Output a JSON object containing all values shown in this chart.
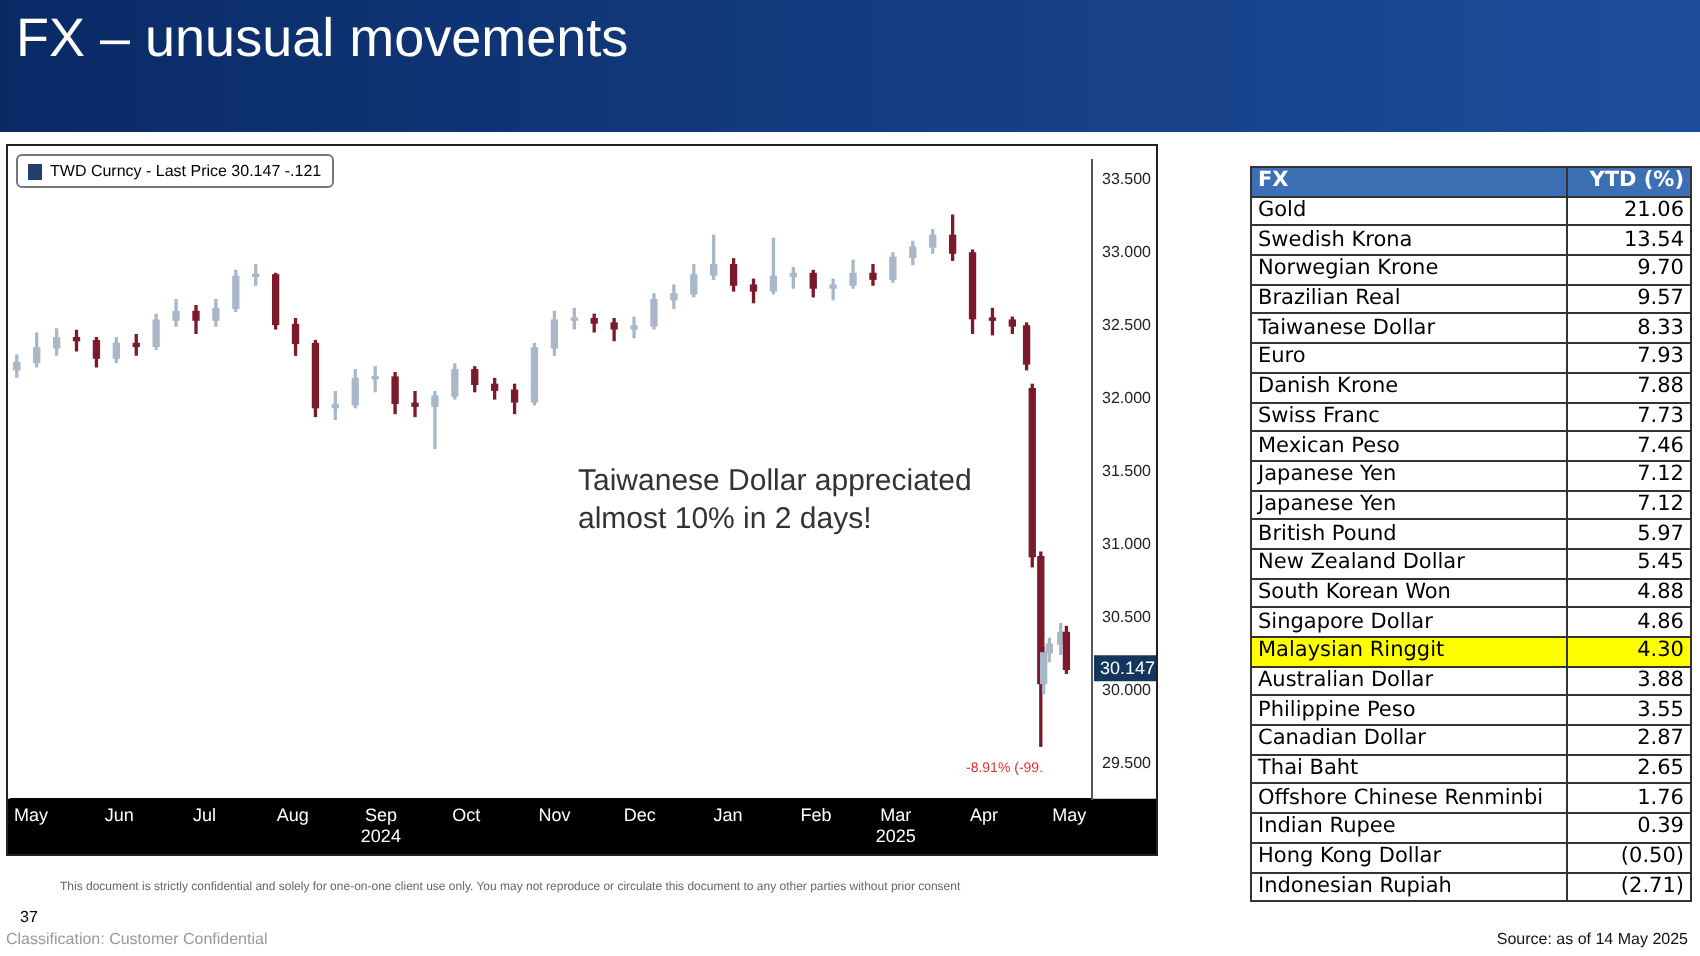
{
  "chart_data": [
    {
      "type": "candlestick",
      "title": "FX – unusual movements",
      "legend": "top left",
      "xlim": [
        "2024-05-08",
        "2025-05-23"
      ],
      "xticks": [
        {
          "value": "2024-05-15",
          "label": "May"
        },
        {
          "value": "2024-06-15",
          "label": "Jun"
        },
        {
          "value": "2024-07-15",
          "label": "Jul"
        },
        {
          "value": "2024-08-15",
          "label": "Aug"
        },
        {
          "value": "2024-09-15",
          "label": "Sep\n2024"
        },
        {
          "value": "2024-10-15",
          "label": "Oct"
        },
        {
          "value": "2024-11-15",
          "label": "Nov"
        },
        {
          "value": "2024-12-15",
          "label": "Dec"
        },
        {
          "value": "2025-01-15",
          "label": "Jan"
        },
        {
          "value": "2025-02-15",
          "label": "Feb"
        },
        {
          "value": "2025-03-15",
          "label": "Mar\n2025"
        },
        {
          "value": "2025-04-15",
          "label": "Apr"
        },
        {
          "value": "2025-05-15",
          "label": "May"
        }
      ],
      "ylim": [
        29.26,
        33.64
      ],
      "yticks": [
        {
          "value": 29.5,
          "label": "29.500"
        },
        {
          "value": 30,
          "label": "30.000"
        },
        {
          "value": 30.5,
          "label": "30.500"
        },
        {
          "value": 31,
          "label": "31.000"
        },
        {
          "value": 31.5,
          "label": "31.500"
        },
        {
          "value": 32,
          "label": "32.000"
        },
        {
          "value": 32.5,
          "label": "32.500"
        },
        {
          "value": 33,
          "label": "33.000"
        },
        {
          "value": 33.5,
          "label": "33.500"
        }
      ],
      "series": [
        {
          "name": "TWD Curncy - Last Price 30.147  -.121",
          "color": "#1f3f6e",
          "x": [
            "2024-05-10",
            "2024-05-17",
            "2024-05-24",
            "2024-05-31",
            "2024-06-07",
            "2024-06-14",
            "2024-06-21",
            "2024-06-28",
            "2024-07-05",
            "2024-07-12",
            "2024-07-19",
            "2024-07-26",
            "2024-08-02",
            "2024-08-09",
            "2024-08-16",
            "2024-08-23",
            "2024-08-30",
            "2024-09-06",
            "2024-09-13",
            "2024-09-20",
            "2024-09-27",
            "2024-10-04",
            "2024-10-11",
            "2024-10-18",
            "2024-10-25",
            "2024-11-01",
            "2024-11-08",
            "2024-11-15",
            "2024-11-22",
            "2024-11-29",
            "2024-12-06",
            "2024-12-13",
            "2024-12-20",
            "2024-12-27",
            "2025-01-03",
            "2025-01-10",
            "2025-01-17",
            "2025-01-24",
            "2025-01-31",
            "2025-02-07",
            "2025-02-14",
            "2025-02-21",
            "2025-02-28",
            "2025-03-07",
            "2025-03-14",
            "2025-03-21",
            "2025-03-28",
            "2025-04-04",
            "2025-04-11",
            "2025-04-18",
            "2025-04-25",
            "2025-04-30",
            "2025-05-02",
            "2025-05-05",
            "2025-05-06",
            "2025-05-08",
            "2025-05-12",
            "2025-05-14"
          ],
          "ohlc": [
            [
              32.2,
              32.3,
              32.15,
              32.25
            ],
            [
              32.25,
              32.45,
              32.22,
              32.35
            ],
            [
              32.35,
              32.48,
              32.3,
              32.42
            ],
            [
              32.42,
              32.47,
              32.33,
              32.4
            ],
            [
              32.4,
              32.42,
              32.22,
              32.28
            ],
            [
              32.28,
              32.42,
              32.25,
              32.38
            ],
            [
              32.38,
              32.44,
              32.3,
              32.36
            ],
            [
              32.36,
              32.58,
              32.34,
              32.54
            ],
            [
              32.54,
              32.68,
              32.5,
              32.6
            ],
            [
              32.6,
              32.64,
              32.45,
              32.54
            ],
            [
              32.54,
              32.68,
              32.5,
              32.62
            ],
            [
              32.62,
              32.88,
              32.6,
              32.84
            ],
            [
              32.84,
              32.92,
              32.78,
              32.85
            ],
            [
              32.85,
              32.86,
              32.48,
              32.51
            ],
            [
              32.51,
              32.55,
              32.3,
              32.38
            ],
            [
              32.38,
              32.4,
              31.88,
              31.94
            ],
            [
              31.94,
              32.05,
              31.86,
              31.96
            ],
            [
              31.96,
              32.2,
              31.94,
              32.14
            ],
            [
              32.14,
              32.22,
              32.05,
              32.15
            ],
            [
              32.15,
              32.18,
              31.9,
              31.97
            ],
            [
              31.97,
              32.05,
              31.88,
              31.95
            ],
            [
              31.95,
              32.05,
              31.66,
              32.02
            ],
            [
              32.02,
              32.24,
              32.0,
              32.2
            ],
            [
              32.2,
              32.22,
              32.05,
              32.1
            ],
            [
              32.1,
              32.14,
              32.0,
              32.06
            ],
            [
              32.06,
              32.1,
              31.9,
              31.98
            ],
            [
              31.98,
              32.38,
              31.96,
              32.35
            ],
            [
              32.35,
              32.6,
              32.3,
              32.54
            ],
            [
              32.54,
              32.62,
              32.48,
              32.55
            ],
            [
              32.55,
              32.58,
              32.46,
              32.52
            ],
            [
              32.52,
              32.55,
              32.4,
              32.48
            ],
            [
              32.48,
              32.56,
              32.42,
              32.5
            ],
            [
              32.5,
              32.72,
              32.48,
              32.68
            ],
            [
              32.68,
              32.78,
              32.62,
              32.72
            ],
            [
              32.72,
              32.92,
              32.7,
              32.85
            ],
            [
              32.85,
              33.12,
              32.82,
              32.92
            ],
            [
              32.92,
              32.96,
              32.74,
              32.78
            ],
            [
              32.78,
              32.82,
              32.66,
              32.74
            ],
            [
              32.74,
              33.1,
              32.72,
              32.84
            ],
            [
              32.84,
              32.9,
              32.76,
              32.86
            ],
            [
              32.86,
              32.88,
              32.7,
              32.76
            ],
            [
              32.76,
              32.82,
              32.68,
              32.78
            ],
            [
              32.78,
              32.95,
              32.76,
              32.86
            ],
            [
              32.86,
              32.92,
              32.78,
              32.82
            ],
            [
              32.82,
              33.0,
              32.8,
              32.97
            ],
            [
              32.97,
              33.08,
              32.92,
              33.04
            ],
            [
              33.04,
              33.16,
              33.0,
              33.12
            ],
            [
              33.12,
              33.26,
              32.95,
              33.0
            ],
            [
              33.0,
              33.02,
              32.45,
              32.55
            ],
            [
              32.55,
              32.62,
              32.44,
              32.54
            ],
            [
              32.54,
              32.56,
              32.45,
              32.5
            ],
            [
              32.5,
              32.52,
              32.2,
              32.24
            ],
            [
              32.07,
              32.1,
              30.85,
              30.92
            ],
            [
              30.92,
              30.95,
              29.62,
              30.05
            ],
            [
              30.05,
              30.3,
              29.98,
              30.26
            ],
            [
              30.26,
              30.36,
              30.2,
              30.32
            ],
            [
              30.32,
              30.46,
              30.25,
              30.4
            ],
            [
              30.4,
              30.44,
              30.12,
              30.147
            ]
          ],
          "colors": [
            "#a9b8c8",
            "#a9b8c8",
            "#a9b8c8",
            "#7a1a2a",
            "#7a1a2a",
            "#a9b8c8",
            "#7a1a2a",
            "#a9b8c8",
            "#a9b8c8",
            "#7a1a2a",
            "#a9b8c8",
            "#a9b8c8",
            "#a9b8c8",
            "#7a1a2a",
            "#7a1a2a",
            "#7a1a2a",
            "#a9b8c8",
            "#a9b8c8",
            "#a9b8c8",
            "#7a1a2a",
            "#7a1a2a",
            "#a9b8c8",
            "#a9b8c8",
            "#7a1a2a",
            "#7a1a2a",
            "#7a1a2a",
            "#a9b8c8",
            "#a9b8c8",
            "#a9b8c8",
            "#7a1a2a",
            "#7a1a2a",
            "#a9b8c8",
            "#a9b8c8",
            "#a9b8c8",
            "#a9b8c8",
            "#a9b8c8",
            "#7a1a2a",
            "#7a1a2a",
            "#a9b8c8",
            "#a9b8c8",
            "#7a1a2a",
            "#a9b8c8",
            "#a9b8c8",
            "#7a1a2a",
            "#a9b8c8",
            "#a9b8c8",
            "#a9b8c8",
            "#7a1a2a",
            "#7a1a2a",
            "#7a1a2a",
            "#7a1a2a",
            "#7a1a2a",
            "#7a1a2a",
            "#7a1a2a",
            "#a9b8c8",
            "#a9b8c8",
            "#a9b8c8",
            "#7a1a2a"
          ]
        }
      ],
      "annotations": [
        "Taiwanese Dollar appreciated almost 10% in 2 days!",
        "-8.91% (-99.",
        {
          "text": "30.147",
          "y": 30.147
        },
        "This document is strictly confidential and solely for one-on-one client use only. You may not reproduce or circulate this document to any other parties without prior consent",
        "37",
        "Classification: Customer Confidential",
        "Source: as of 14 May 2025"
      ]
    },
    {
      "type": "other",
      "xlabel": "FX",
      "ylabel": "YTD (%)",
      "categories": [
        "Gold",
        "Swedish Krona",
        "Norwegian Krone",
        "Brazilian Real",
        "Taiwanese Dollar",
        "Euro",
        "Danish Krone",
        "Swiss Franc",
        "Mexican Peso",
        "Japanese Yen",
        "Japanese Yen",
        "British Pound",
        "New Zealand Dollar",
        "South Korean Won",
        "Singapore Dollar",
        "Malaysian Ringgit",
        "Australian Dollar",
        "Philippine Peso",
        "Canadian Dollar",
        "Thai Baht",
        "Offshore Chinese Renminbi",
        "Indian Rupee",
        "Hong Kong Dollar",
        "Indonesian Rupiah"
      ],
      "value_labels": [
        "21.06",
        "13.54",
        "9.70",
        "9.57",
        "8.33",
        "7.93",
        "7.88",
        "7.73",
        "7.46",
        "7.12",
        "7.12",
        "5.97",
        "5.45",
        "4.88",
        "4.86",
        "4.30",
        "3.88",
        "3.55",
        "2.87",
        "2.65",
        "1.76",
        "0.39",
        "(0.50)",
        "(2.71)"
      ],
      "colors": [
        "#ffffff",
        "#ffffff",
        "#ffffff",
        "#ffffff",
        "#ffffff",
        "#ffffff",
        "#ffffff",
        "#ffffff",
        "#ffffff",
        "#ffffff",
        "#ffffff",
        "#ffffff",
        "#ffffff",
        "#ffffff",
        "#ffffff",
        "#ffff00",
        "#ffffff",
        "#ffffff",
        "#ffffff",
        "#ffffff",
        "#ffffff",
        "#ffffff",
        "#ffffff",
        "#ffffff"
      ]
    }
  ]
}
